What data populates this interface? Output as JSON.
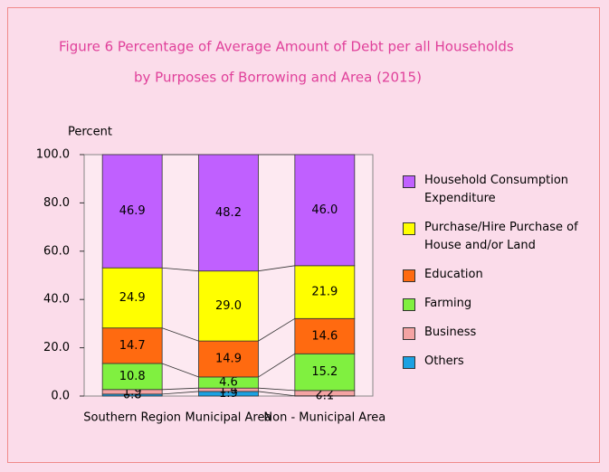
{
  "chart_data": {
    "type": "stacked-bar",
    "title": [
      "Figure  6   Percentage of Average Amount of Debt per all Households",
      "by Purposes of  Borrowing and Area (2015)"
    ],
    "y_label": "Percent",
    "categories": [
      "Southern Region",
      "Municipal Area",
      "Non - Municipal Area"
    ],
    "series": [
      {
        "name": "Others",
        "color": "#1ba1e2",
        "values": [
          0.8,
          1.9,
          0.1
        ],
        "value_labels": [
          "0.8",
          "1.9",
          "0.1"
        ]
      },
      {
        "name": "Business",
        "color": "#f4a3a3",
        "values": [
          1.9,
          1.4,
          2.2
        ],
        "value_labels": [
          "1.9",
          "1.4",
          "2.2"
        ]
      },
      {
        "name": "Farming",
        "color": "#80f040",
        "values": [
          10.8,
          4.6,
          15.2
        ],
        "value_labels": [
          "10.8",
          "4.6",
          "15.2"
        ]
      },
      {
        "name": "Education",
        "color": "#ff6a10",
        "values": [
          14.7,
          14.9,
          14.6
        ],
        "value_labels": [
          "14.7",
          "14.9",
          "14.6"
        ]
      },
      {
        "name": "Purchase/Hire Purchase of House and/or Land",
        "color": "#ffff00",
        "values": [
          24.9,
          29.0,
          21.9
        ],
        "value_labels": [
          "24.9",
          "29.0",
          "21.9"
        ]
      },
      {
        "name": "Household Consumption Expenditure",
        "color": "#c060ff",
        "values": [
          46.9,
          48.2,
          46.0
        ],
        "value_labels": [
          "46.9",
          "48.2",
          "46.0"
        ]
      }
    ],
    "ylim": [
      0,
      100
    ],
    "yticks": [
      {
        "value": 0,
        "label": "0.0"
      },
      {
        "value": 20,
        "label": "20.0"
      },
      {
        "value": 40,
        "label": "40.0"
      },
      {
        "value": 60,
        "label": "60.0"
      },
      {
        "value": 80,
        "label": "80.0"
      },
      {
        "value": 100,
        "label": "100.0"
      }
    ]
  }
}
